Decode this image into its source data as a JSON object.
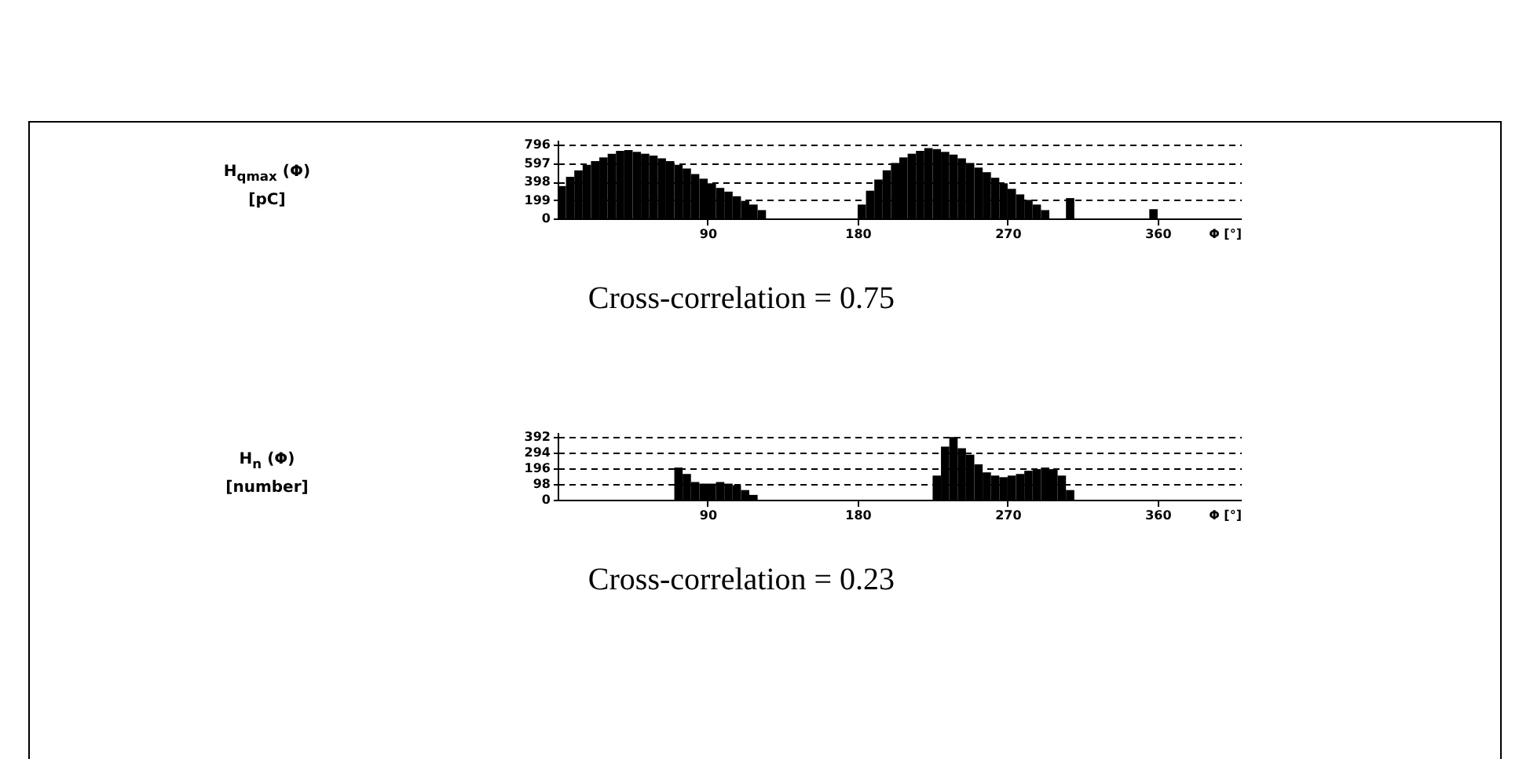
{
  "chart_data": [
    {
      "type": "histogram",
      "ylabel": "H$_{qmax}$ (Φ)\n[pC]",
      "xlabel": "Φ [°]",
      "color": "#000000",
      "bins": [
        0,
        5,
        10,
        15,
        20,
        25,
        30,
        35,
        40,
        45,
        50,
        55,
        60,
        65,
        70,
        75,
        80,
        85,
        90,
        95,
        100,
        105,
        110,
        115,
        120,
        125,
        130,
        135,
        140,
        145,
        150,
        155,
        160,
        165,
        170,
        175,
        180,
        185,
        190,
        195,
        200,
        205,
        210,
        215,
        220,
        225,
        230,
        235,
        240,
        245,
        250,
        255,
        260,
        265,
        270,
        275,
        280,
        285,
        290,
        295,
        300,
        305,
        310,
        315,
        320,
        325,
        330,
        335,
        340,
        345,
        350,
        355,
        360
      ],
      "values": [
        350,
        450,
        520,
        580,
        620,
        660,
        700,
        730,
        740,
        720,
        700,
        680,
        650,
        620,
        580,
        540,
        480,
        430,
        380,
        330,
        290,
        240,
        190,
        150,
        90,
        0,
        0,
        0,
        0,
        0,
        0,
        0,
        0,
        0,
        0,
        0,
        150,
        300,
        420,
        520,
        600,
        660,
        700,
        730,
        760,
        750,
        720,
        690,
        650,
        600,
        550,
        500,
        440,
        380,
        320,
        260,
        200,
        150,
        90,
        0,
        0,
        220,
        0,
        0,
        0,
        0,
        0,
        0,
        0,
        0,
        0,
        100
      ],
      "xlim": [
        0,
        410
      ],
      "ylim": [
        0,
        850
      ],
      "xticks": [
        90,
        180,
        270,
        360
      ],
      "yticks": [
        0,
        199,
        398,
        597,
        796
      ],
      "grid": "y",
      "line_style": "dashed",
      "annotations": [
        "Cross-correlation = 0.75"
      ]
    },
    {
      "type": "histogram",
      "ylabel": "H$_{n}$ (Φ)\n[number]",
      "xlabel": "Φ [°]",
      "color": "#000000",
      "bins": [
        0,
        5,
        10,
        15,
        20,
        25,
        30,
        35,
        40,
        45,
        50,
        55,
        60,
        65,
        70,
        75,
        80,
        85,
        90,
        95,
        100,
        105,
        110,
        115,
        120,
        125,
        130,
        135,
        140,
        145,
        150,
        155,
        160,
        165,
        170,
        175,
        180,
        185,
        190,
        195,
        200,
        205,
        210,
        215,
        220,
        225,
        230,
        235,
        240,
        245,
        250,
        255,
        260,
        265,
        270,
        275,
        280,
        285,
        290,
        295,
        300,
        305,
        310,
        315,
        320,
        325,
        330,
        335,
        340,
        345,
        350,
        355,
        360
      ],
      "values": [
        0,
        0,
        0,
        0,
        0,
        0,
        0,
        0,
        0,
        0,
        0,
        0,
        0,
        0,
        200,
        160,
        110,
        100,
        100,
        110,
        100,
        90,
        60,
        30,
        0,
        0,
        0,
        0,
        0,
        0,
        0,
        0,
        0,
        0,
        0,
        0,
        0,
        0,
        0,
        0,
        0,
        0,
        0,
        0,
        0,
        150,
        330,
        390,
        320,
        280,
        220,
        170,
        150,
        140,
        150,
        160,
        180,
        190,
        200,
        190,
        150,
        60,
        0,
        0,
        0,
        0,
        0,
        0,
        0,
        0,
        0,
        0
      ],
      "xlim": [
        0,
        410
      ],
      "ylim": [
        0,
        420
      ],
      "xticks": [
        90,
        180,
        270,
        360
      ],
      "yticks": [
        0,
        98,
        196,
        294,
        392
      ],
      "grid": "y",
      "line_style": "dashed",
      "annotations": [
        "Cross-correlation = 0.23"
      ]
    }
  ]
}
